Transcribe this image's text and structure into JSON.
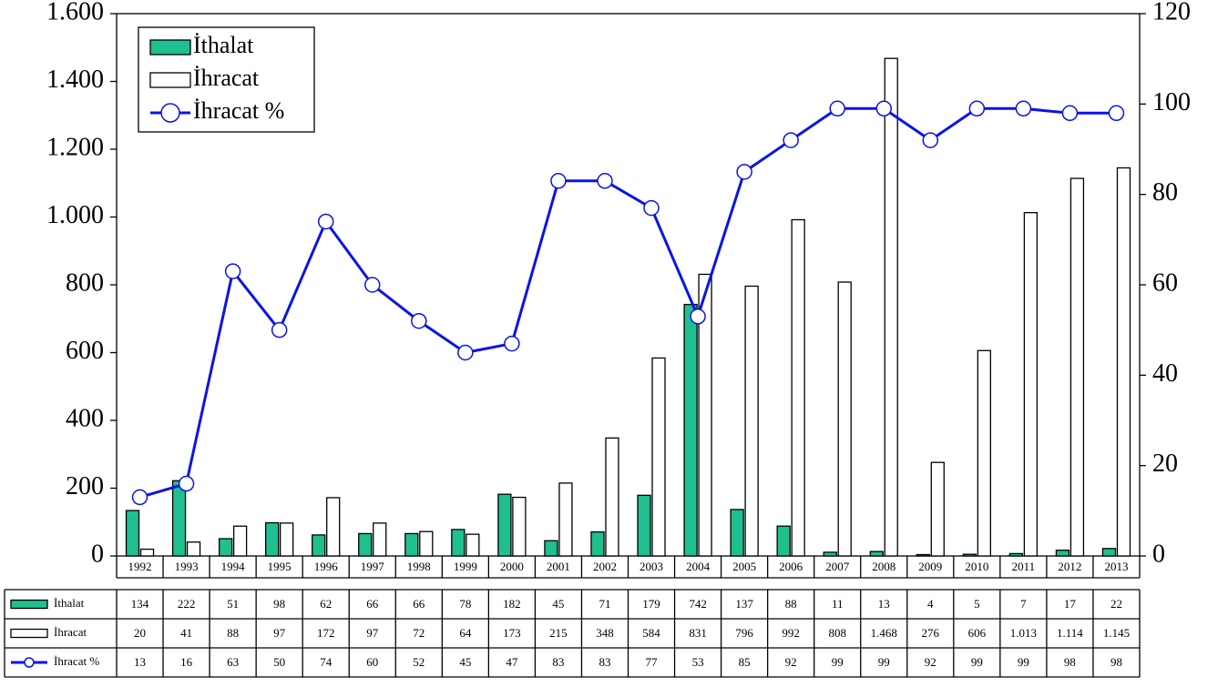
{
  "chart_data": {
    "type": "bar-line",
    "categories": [
      "1992",
      "1993",
      "1994",
      "1995",
      "1996",
      "1997",
      "1998",
      "1999",
      "2000",
      "2001",
      "2002",
      "2003",
      "2004",
      "2005",
      "2006",
      "2007",
      "2008",
      "2009",
      "2010",
      "2011",
      "2012",
      "2013"
    ],
    "series": [
      {
        "name": "İthalat",
        "type": "bar",
        "color": "#1fbf8f",
        "values": [
          134,
          222,
          51,
          98,
          62,
          66,
          66,
          78,
          182,
          45,
          71,
          179,
          742,
          137,
          88,
          11,
          13,
          4,
          5,
          7,
          17,
          22
        ]
      },
      {
        "name": "İhracat",
        "type": "bar",
        "color": "#ffffff",
        "values": [
          20,
          41,
          88,
          97,
          172,
          97,
          72,
          64,
          173,
          215,
          348,
          584,
          831,
          796,
          992,
          808,
          1468,
          276,
          606,
          1013,
          1114,
          1145
        ],
        "value_labels": [
          "20",
          "41",
          "88",
          "97",
          "172",
          "97",
          "72",
          "64",
          "173",
          "215",
          "348",
          "584",
          "831",
          "796",
          "992",
          "808",
          "1.468",
          "276",
          "606",
          "1.013",
          "1.114",
          "1.145"
        ]
      },
      {
        "name": "İhracat %",
        "type": "line",
        "axis": "y2",
        "color": "#0a14e6",
        "values": [
          13,
          16,
          63,
          50,
          74,
          60,
          52,
          45,
          47,
          83,
          83,
          77,
          53,
          85,
          92,
          99,
          99,
          92,
          99,
          99,
          98,
          98
        ]
      }
    ],
    "ylim": [
      0,
      1600
    ],
    "yticks": [
      0,
      200,
      400,
      600,
      800,
      {
        "value": 1000,
        "label": "1.000"
      },
      {
        "value": 1200,
        "label": "1.200"
      },
      {
        "value": 1400,
        "label": "1.400"
      },
      {
        "value": 1600,
        "label": "1.600"
      }
    ],
    "y2lim": [
      0,
      120
    ],
    "y2ticks": [
      0,
      20,
      40,
      60,
      80,
      100,
      120
    ],
    "legend": "upper left",
    "data_table": true
  }
}
